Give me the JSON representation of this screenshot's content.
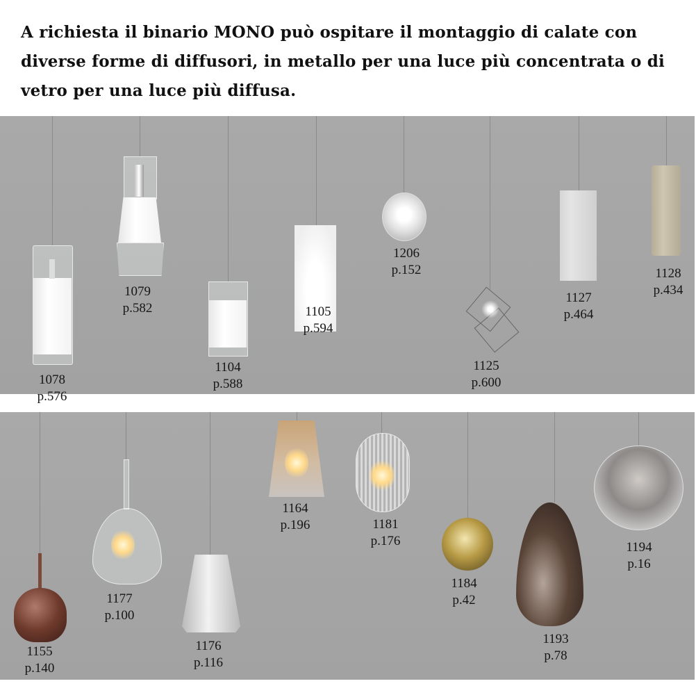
{
  "intro_text": "A richiesta il binario MONO può ospitare il montaggio di calate con diverse forme di diffusori, in metallo per una luce più concentrata o di vetro per una luce più diffusa.",
  "top_row": [
    {
      "code": "1078",
      "page": "p.576"
    },
    {
      "code": "1079",
      "page": "p.582"
    },
    {
      "code": "1104",
      "page": "p.588"
    },
    {
      "code": "1105",
      "page": "p.594"
    },
    {
      "code": "1206",
      "page": "p.152"
    },
    {
      "code": "1125",
      "page": "p.600"
    },
    {
      "code": "1127",
      "page": "p.464"
    },
    {
      "code": "1128",
      "page": "p.434"
    }
  ],
  "bottom_row": [
    {
      "code": "1155",
      "page": "p.140"
    },
    {
      "code": "1177",
      "page": "p.100"
    },
    {
      "code": "1176",
      "page": "p.116"
    },
    {
      "code": "1164",
      "page": "p.196"
    },
    {
      "code": "1181",
      "page": "p.176"
    },
    {
      "code": "1184",
      "page": "p.42"
    },
    {
      "code": "1193",
      "page": "p.78"
    },
    {
      "code": "1194",
      "page": "p.16"
    }
  ],
  "colors": {
    "panel": "#a6a6a6",
    "copper": "#6e3a2c",
    "gold": "#b79a45",
    "bronze": "#5a4438",
    "amber": "#c9a478",
    "smoke": "#8d8a88"
  }
}
